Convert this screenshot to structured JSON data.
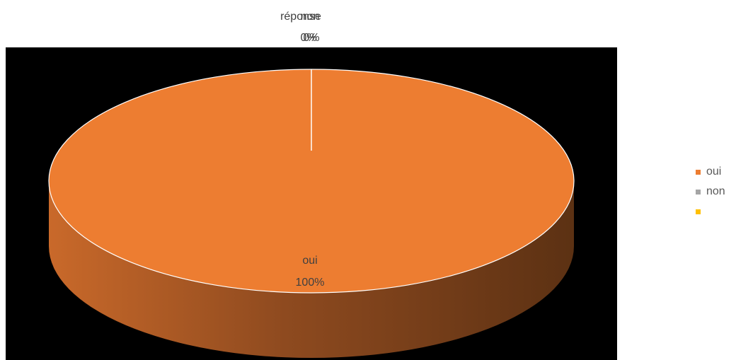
{
  "chart_data": {
    "type": "pie",
    "style": "3d",
    "categories": [
      "oui",
      "non",
      "",
      "réponse"
    ],
    "values": [
      100,
      0,
      0,
      0
    ],
    "percent_labels": [
      "100%",
      "0%",
      "0%",
      "0%"
    ],
    "colors": {
      "oui": "#ed7d31",
      "non": "#a5a5a5",
      "third": "#ffc000",
      "plot_background": "#000000",
      "label_text": "#404040",
      "legend_text": "#595959"
    },
    "legend": {
      "position": "right",
      "entries": [
        {
          "label": "oui",
          "color": "#ed7d31"
        },
        {
          "label": "non",
          "color": "#a5a5a5"
        },
        {
          "label": "",
          "color": "#ffc000"
        }
      ]
    }
  }
}
